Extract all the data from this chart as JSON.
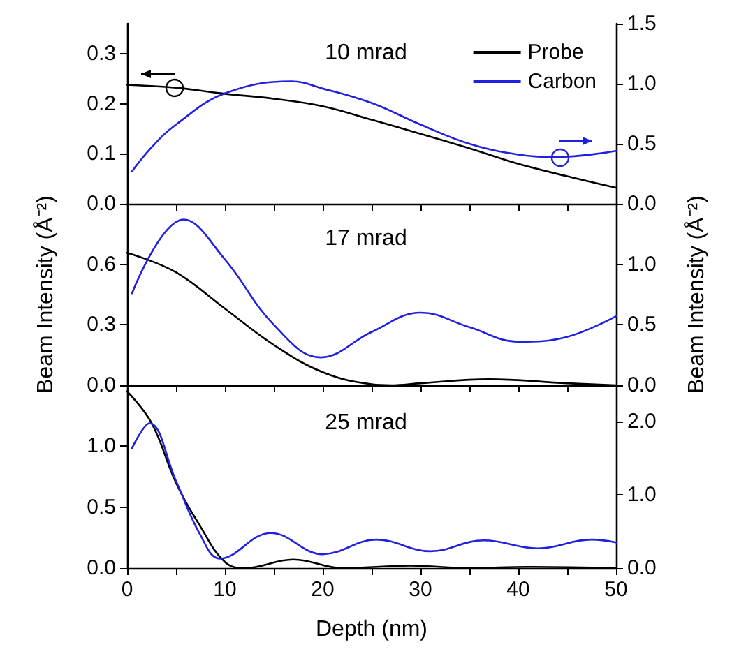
{
  "chart_data": [
    {
      "type": "line",
      "title": "10 mrad",
      "marker": "none",
      "legend": "top right",
      "tick_labels": "y",
      "xlim": [
        0,
        50
      ],
      "xticks": [
        {
          "value": 0,
          "label": null
        },
        {
          "value": 5,
          "label": null
        },
        {
          "value": 10,
          "label": null
        },
        {
          "value": 15,
          "label": null
        },
        {
          "value": 20,
          "label": null
        },
        {
          "value": 25,
          "label": null
        },
        {
          "value": 30,
          "label": null
        },
        {
          "value": 35,
          "label": null
        },
        {
          "value": 40,
          "label": null
        },
        {
          "value": 45,
          "label": null
        },
        {
          "value": 50,
          "label": null
        }
      ],
      "ylim": [
        0,
        0.36
      ],
      "yticks": [
        {
          "value": 0,
          "label": "0.0"
        },
        {
          "value": 0.1,
          "label": "0.1"
        },
        {
          "value": 0.2,
          "label": "0.2"
        },
        {
          "value": 0.3,
          "label": "0.3"
        }
      ],
      "y2lim": [
        0,
        1.5
      ],
      "y2ticks": [
        {
          "value": 0,
          "label": "0.0"
        },
        {
          "value": 0.5,
          "label": "0.5"
        },
        {
          "value": 1,
          "label": "1.0"
        },
        {
          "value": 1.5,
          "label": "1.5"
        }
      ],
      "series": [
        {
          "name": "Probe",
          "color": "#000000",
          "x": [
            0,
            5,
            10,
            15,
            20,
            25,
            30,
            35,
            40,
            45,
            50
          ],
          "values": [
            0.238,
            0.232,
            0.22,
            0.21,
            0.195,
            0.168,
            0.14,
            0.111,
            0.08,
            0.055,
            0.032
          ]
        },
        {
          "name": "Carbon",
          "color": "#2020e0",
          "axis": "y2",
          "x": [
            0.5,
            2.5,
            5,
            10,
            16.8,
            20,
            25,
            30,
            35,
            40,
            44,
            50
          ],
          "values": [
            0.27,
            0.47,
            0.66,
            0.92,
            1.02,
            0.96,
            0.84,
            0.66,
            0.5,
            0.41,
            0.39,
            0.44
          ]
        }
      ]
    },
    {
      "type": "line",
      "title": "17 mrad",
      "marker": "none",
      "tick_labels": "y",
      "ylabel": "Beam Intensity (Å⁻²)",
      "y2label": "Beam Intensity (Å⁻²)",
      "xlim": [
        0,
        50
      ],
      "xticks": [
        {
          "value": 0,
          "label": null
        },
        {
          "value": 5,
          "label": null
        },
        {
          "value": 10,
          "label": null
        },
        {
          "value": 15,
          "label": null
        },
        {
          "value": 20,
          "label": null
        },
        {
          "value": 25,
          "label": null
        },
        {
          "value": 30,
          "label": null
        },
        {
          "value": 35,
          "label": null
        },
        {
          "value": 40,
          "label": null
        },
        {
          "value": 45,
          "label": null
        },
        {
          "value": 50,
          "label": null
        }
      ],
      "ylim": [
        0,
        0.9
      ],
      "yticks": [
        {
          "value": 0,
          "label": "0.0"
        },
        {
          "value": 0.3,
          "label": "0.3"
        },
        {
          "value": 0.6,
          "label": "0.6"
        }
      ],
      "y2lim": [
        0,
        1.5
      ],
      "y2ticks": [
        {
          "value": 0,
          "label": "0.0"
        },
        {
          "value": 0.5,
          "label": "0.5"
        },
        {
          "value": 1,
          "label": "1.0"
        }
      ],
      "series": [
        {
          "color": "#000000",
          "x": [
            0,
            5,
            10,
            15,
            20,
            25,
            27,
            30,
            37,
            45,
            50
          ],
          "values": [
            0.657,
            0.56,
            0.38,
            0.2,
            0.065,
            0.005,
            0,
            0.01,
            0.03,
            0.01,
            0
          ]
        },
        {
          "color": "#2020e0",
          "axis": "y2",
          "x": [
            0.5,
            5.8,
            10,
            15,
            19.8,
            25,
            30,
            35,
            40,
            45,
            50
          ],
          "values": [
            0.76,
            1.37,
            1.04,
            0.5,
            0.23,
            0.44,
            0.6,
            0.48,
            0.36,
            0.4,
            0.57
          ]
        }
      ]
    },
    {
      "type": "line",
      "title": "25 mrad",
      "marker": "none",
      "xlabel": "Depth (nm)",
      "xlim": [
        0,
        50
      ],
      "xticks": [
        0,
        {
          "value": 5,
          "label": null
        },
        10,
        {
          "value": 15,
          "label": null
        },
        20,
        {
          "value": 25,
          "label": null
        },
        30,
        {
          "value": 35,
          "label": null
        },
        40,
        {
          "value": 45,
          "label": null
        },
        50
      ],
      "ylim": [
        0,
        1.5
      ],
      "yticks": [
        {
          "value": 0,
          "label": "0.0"
        },
        {
          "value": 0.5,
          "label": "0.5"
        },
        {
          "value": 1,
          "label": "1.0"
        }
      ],
      "y2lim": [
        0,
        2.5
      ],
      "y2ticks": [
        {
          "value": 0,
          "label": "0.0"
        },
        {
          "value": 1,
          "label": "1.0"
        },
        {
          "value": 2,
          "label": "2.0"
        }
      ],
      "series": [
        {
          "color": "#000000",
          "x": [
            0,
            2.5,
            5,
            7.5,
            10,
            12,
            17,
            22,
            29,
            35,
            41,
            50
          ],
          "values": [
            1.45,
            1.19,
            0.7,
            0.34,
            0.05,
            0,
            0.07,
            0,
            0.02,
            0,
            0.01,
            0
          ]
        },
        {
          "color": "#2020e0",
          "axis": "y2",
          "x": [
            0.5,
            2.3,
            5,
            7.5,
            9.5,
            14.7,
            20,
            25.5,
            31,
            36.5,
            42,
            47.5,
            50
          ],
          "values": [
            1.64,
            1.98,
            1.19,
            0.45,
            0.13,
            0.48,
            0.19,
            0.39,
            0.23,
            0.38,
            0.27,
            0.39,
            0.35
          ]
        }
      ]
    }
  ]
}
